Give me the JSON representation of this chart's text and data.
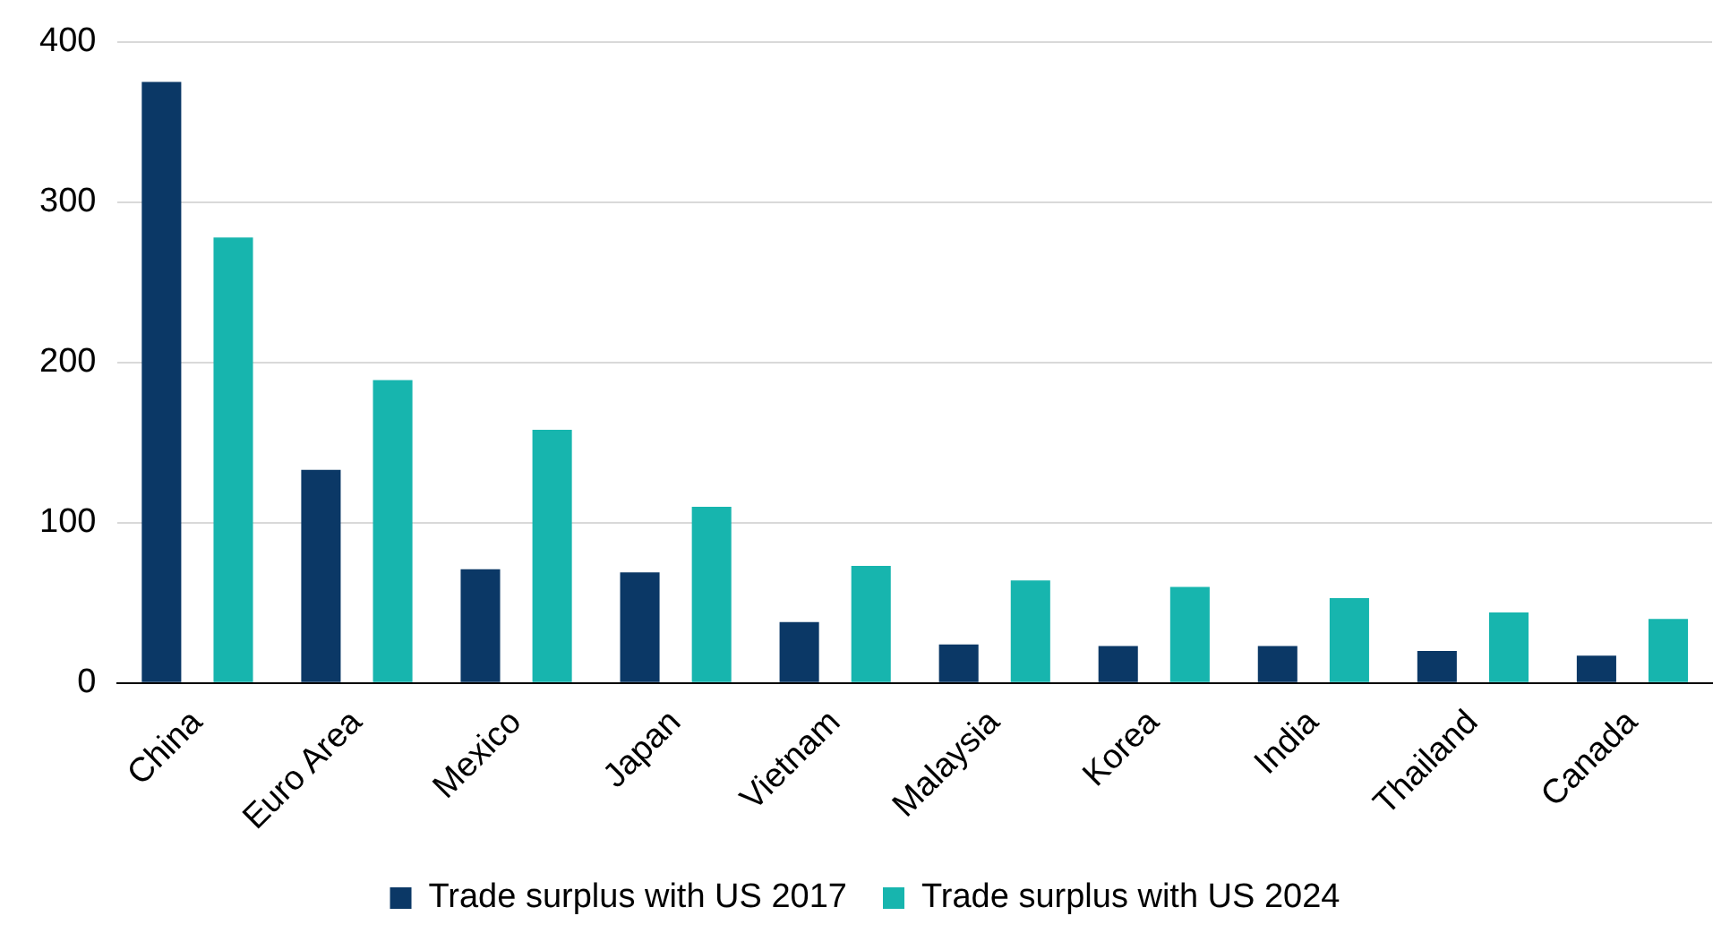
{
  "chart_data": {
    "type": "bar",
    "categories": [
      "China",
      "Euro Area",
      "Mexico",
      "Japan",
      "Vietnam",
      "Malaysia",
      "Korea",
      "India",
      "Thailand",
      "Canada"
    ],
    "series": [
      {
        "name": "Trade surplus with US 2017",
        "color": "#0b3866",
        "values": [
          375,
          133,
          71,
          69,
          38,
          24,
          23,
          23,
          20,
          17
        ]
      },
      {
        "name": "Trade surplus with US 2024",
        "color": "#17b5ae",
        "values": [
          278,
          189,
          158,
          110,
          73,
          64,
          60,
          53,
          44,
          40
        ]
      }
    ],
    "ylim": [
      0,
      400
    ],
    "yticks": [
      0,
      100,
      200,
      300,
      400
    ],
    "grid": "y",
    "legend": "bottom"
  }
}
